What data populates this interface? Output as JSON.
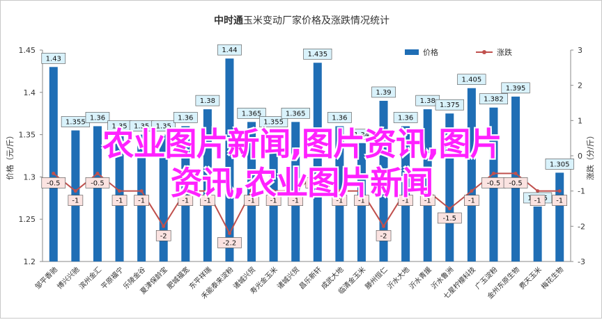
{
  "chart_data": {
    "type": "bar",
    "title_bold": "中时通",
    "title_rest": "玉米变动厂家价格及涨跌情况统计",
    "ylabel_left": "价格（元/斤）",
    "ylabel_right": "涨跌（分/斤）",
    "ylim": [
      1.2,
      1.45
    ],
    "yticks": [
      "1.2",
      "1.25",
      "1.3",
      "1.35",
      "1.4",
      "1.45"
    ],
    "y2lim": [
      -3,
      3
    ],
    "y2ticks": [
      "-3",
      "-2",
      "-1",
      "0",
      "1",
      "2",
      "3"
    ],
    "legend_position": "top-right",
    "grid": false,
    "categories": [
      "邹平香驰",
      "博兴兴驰",
      "滨州金汇",
      "平原福宁",
      "乐陵金谷",
      "夏津保龄宝",
      "肥城福宽",
      "东平祥瑞",
      "禾能泰来淀粉",
      "诸城兴贸",
      "寿光金玉米",
      "诸城兴贸",
      "昌乐新轩",
      "成武大地",
      "临清金玉米",
      "滕州恒仁",
      "沂水大地",
      "沂水青援",
      "沂水鲁洲",
      "七星柠檬科技",
      "广玉淀粉",
      "金州东原生物",
      "费天玉米",
      "梅花生物"
    ],
    "series": [
      {
        "name": "价格",
        "color": "#1f6eb5",
        "values": [
          1.43,
          1.355,
          1.36,
          1.35,
          1.35,
          1.35,
          1.36,
          1.38,
          1.44,
          1.365,
          1.355,
          1.365,
          1.435,
          1.36,
          1.34,
          1.39,
          1.36,
          1.38,
          1.375,
          1.405,
          1.382,
          1.395,
          1.265,
          1.305
        ],
        "labels": [
          "1.43",
          "1.355",
          "1.36",
          "1.35",
          "1.35",
          "1.35",
          "1.36",
          "1.38",
          "1.44",
          "1.365",
          "1.355",
          "1.365",
          "1.435",
          "1.36",
          "1.34",
          "1.39",
          "1.36",
          "1.38",
          "1.375",
          "1.405",
          "1.382",
          "1.395",
          "1.265",
          "1.305"
        ]
      },
      {
        "name": "涨跌",
        "color": "#c0504d",
        "values": [
          -0.5,
          -1,
          -0.5,
          -1,
          -1,
          -2,
          -1,
          -1,
          -2.2,
          -1,
          -1,
          -1,
          -0.5,
          -1,
          -1,
          -2,
          -1,
          -1,
          -1.5,
          -1,
          -0.5,
          -0.5,
          -1,
          -1
        ],
        "labels": [
          "-0.5",
          "-1",
          "-0.5",
          "-1",
          "-1",
          "-2",
          "-1",
          "-1",
          "-2.2",
          "-1",
          "-1",
          "-1",
          "-0.5",
          "-1",
          "-1",
          "-2",
          "-1",
          "-1",
          "-1.5",
          "-1",
          "-0.5",
          "-0.5",
          "-1",
          "-1"
        ]
      }
    ]
  },
  "overlay": {
    "line1": "农业图片新闻,图片资讯,图片",
    "line2": "资讯,农业图片新闻"
  }
}
